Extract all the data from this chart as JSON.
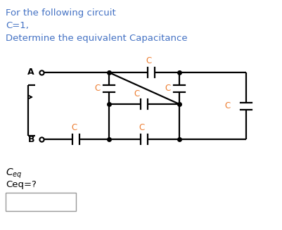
{
  "text_line1": "For the following circuit",
  "text_line2": "C=1,",
  "text_line3": "Determine the equivalent Capacitance",
  "label_A": "A",
  "label_B": "B",
  "label_ceqeq": "Ceq=?",
  "label_C": "C",
  "text_color_blue": "#4472C4",
  "text_color_orange": "#ED7D31",
  "bg_color": "#FFFFFF",
  "line_color": "#000000",
  "nodes": {
    "xA": 62,
    "yA": 103,
    "xTL": 155,
    "yTL": 103,
    "xTR": 255,
    "yTR": 103,
    "xFR": 350,
    "yFR": 103,
    "xML": 155,
    "yML": 148,
    "xMR": 255,
    "yMR": 148,
    "xBL": 155,
    "yBL": 198,
    "xBC": 255,
    "yBC": 198,
    "xB": 62,
    "yB": 198,
    "xFRB": 350,
    "yFRB": 198
  }
}
